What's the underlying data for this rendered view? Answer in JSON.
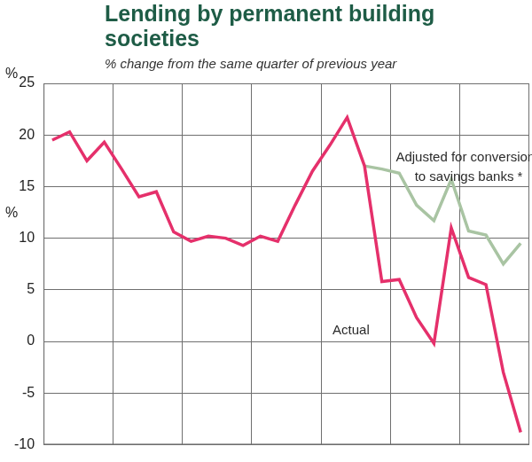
{
  "chart_data": {
    "type": "line",
    "title": "Lending by permanent building societies",
    "subtitle": "% change from the same quarter of previous year",
    "y_label": "%",
    "categories": [
      null,
      null,
      null,
      null,
      null,
      null,
      null,
      null,
      null,
      null,
      null,
      null,
      null,
      null,
      null,
      null,
      null,
      null,
      null,
      null,
      null,
      null,
      null,
      null,
      null,
      null,
      null,
      null
    ],
    "series": [
      {
        "name": "Actual",
        "color": "#e5306b",
        "values": [
          19.5,
          20.3,
          17.5,
          19.3,
          16.7,
          14,
          14.5,
          10.6,
          9.7,
          10.2,
          10,
          9.3,
          10.2,
          9.7,
          13.2,
          16.5,
          19,
          21.7,
          17,
          5.8,
          6,
          2.3,
          -0.2,
          11,
          6.2,
          5.5,
          -3,
          -8.8
        ]
      },
      {
        "name": "Adjusted for conversions to savings banks *",
        "color": "#a9c4a3",
        "values": [
          null,
          null,
          null,
          null,
          null,
          null,
          null,
          null,
          null,
          null,
          null,
          null,
          null,
          null,
          null,
          null,
          null,
          null,
          17,
          16.7,
          16.3,
          13.2,
          11.7,
          15.7,
          10.7,
          10.3,
          7.5,
          9.5
        ]
      }
    ],
    "ylim": [
      -10,
      25
    ],
    "yticks": [
      -10,
      -5,
      0,
      5,
      10,
      15,
      20,
      25
    ],
    "grid": true,
    "tick_labels": "y"
  }
}
